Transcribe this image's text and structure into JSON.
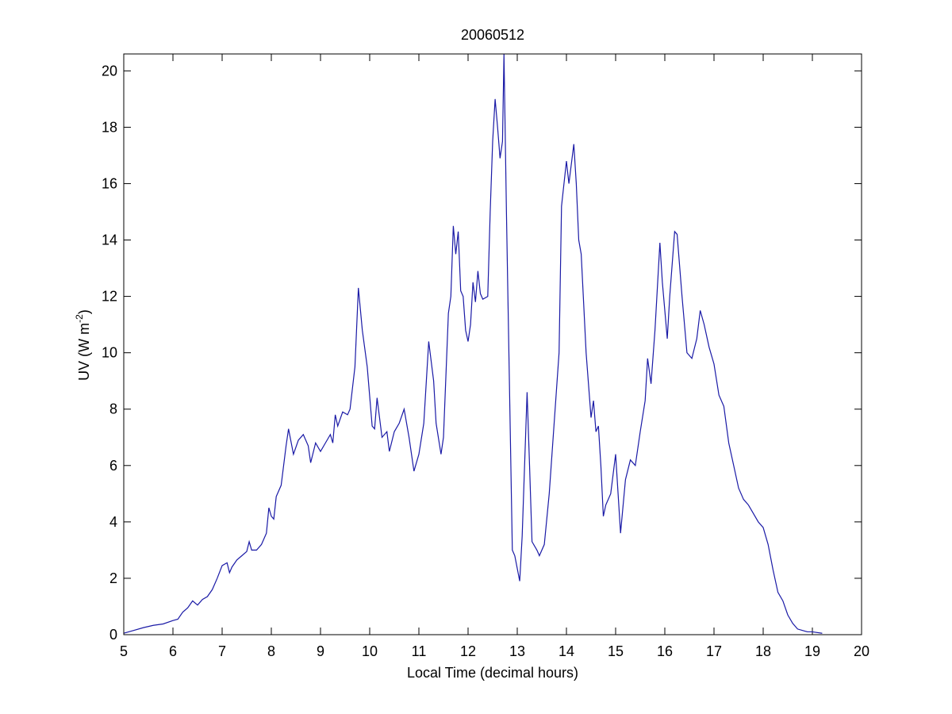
{
  "chart_data": {
    "type": "line",
    "title": "20060512",
    "xlabel": "Local Time (decimal hours)",
    "ylabel": [
      "UV (W m",
      "-2",
      ")"
    ],
    "x": [
      5.0,
      5.2,
      5.4,
      5.6,
      5.8,
      6.0,
      6.1,
      6.2,
      6.3,
      6.4,
      6.5,
      6.6,
      6.7,
      6.8,
      6.9,
      7.0,
      7.1,
      7.15,
      7.2,
      7.3,
      7.4,
      7.5,
      7.55,
      7.6,
      7.7,
      7.8,
      7.9,
      7.95,
      8.0,
      8.05,
      8.1,
      8.2,
      8.3,
      8.35,
      8.45,
      8.55,
      8.65,
      8.75,
      8.8,
      8.9,
      9.0,
      9.1,
      9.2,
      9.25,
      9.3,
      9.35,
      9.45,
      9.55,
      9.6,
      9.7,
      9.77,
      9.85,
      9.95,
      10.05,
      10.1,
      10.15,
      10.25,
      10.35,
      10.4,
      10.5,
      10.6,
      10.7,
      10.8,
      10.9,
      11.0,
      11.1,
      11.2,
      11.3,
      11.35,
      11.45,
      11.5,
      11.6,
      11.65,
      11.7,
      11.75,
      11.8,
      11.85,
      11.9,
      11.95,
      12.0,
      12.05,
      12.1,
      12.15,
      12.2,
      12.25,
      12.3,
      12.4,
      12.45,
      12.5,
      12.55,
      12.6,
      12.65,
      12.7,
      12.73,
      12.78,
      12.85,
      12.9,
      12.95,
      13.05,
      13.1,
      13.2,
      13.25,
      13.3,
      13.4,
      13.45,
      13.55,
      13.65,
      13.75,
      13.85,
      13.9,
      14.0,
      14.05,
      14.15,
      14.2,
      14.25,
      14.3,
      14.4,
      14.5,
      14.55,
      14.6,
      14.65,
      14.7,
      14.75,
      14.8,
      14.9,
      15.0,
      15.05,
      15.1,
      15.2,
      15.3,
      15.4,
      15.5,
      15.6,
      15.65,
      15.72,
      15.8,
      15.9,
      15.95,
      16.05,
      16.1,
      16.2,
      16.25,
      16.35,
      16.45,
      16.55,
      16.65,
      16.72,
      16.8,
      16.9,
      17.0,
      17.1,
      17.2,
      17.3,
      17.4,
      17.5,
      17.6,
      17.7,
      17.8,
      17.9,
      18.0,
      18.1,
      18.2,
      18.3,
      18.4,
      18.5,
      18.6,
      18.7,
      18.8,
      18.9,
      19.0,
      19.2
    ],
    "values": [
      0.05,
      0.15,
      0.25,
      0.33,
      0.38,
      0.5,
      0.55,
      0.8,
      0.95,
      1.2,
      1.05,
      1.25,
      1.35,
      1.6,
      2.0,
      2.45,
      2.55,
      2.2,
      2.4,
      2.65,
      2.8,
      2.95,
      3.3,
      3.0,
      3.0,
      3.2,
      3.6,
      4.5,
      4.2,
      4.1,
      4.9,
      5.3,
      6.7,
      7.3,
      6.4,
      6.9,
      7.1,
      6.7,
      6.1,
      6.8,
      6.5,
      6.8,
      7.1,
      6.8,
      7.8,
      7.4,
      7.9,
      7.8,
      8.0,
      9.5,
      12.3,
      10.8,
      9.5,
      7.4,
      7.3,
      8.4,
      7.0,
      7.2,
      6.5,
      7.2,
      7.5,
      8.0,
      7.0,
      5.8,
      6.4,
      7.5,
      10.4,
      9.0,
      7.5,
      6.4,
      7.0,
      11.4,
      12.0,
      14.5,
      13.5,
      14.3,
      12.2,
      12.0,
      10.8,
      10.4,
      11.0,
      12.5,
      11.8,
      12.9,
      12.1,
      11.9,
      12.0,
      15.0,
      17.5,
      19.0,
      18.0,
      16.9,
      17.5,
      20.6,
      15.0,
      8.0,
      3.0,
      2.8,
      1.9,
      3.5,
      8.6,
      6.0,
      3.3,
      3.0,
      2.8,
      3.2,
      5.0,
      7.5,
      10.0,
      15.2,
      16.8,
      16.0,
      17.4,
      16.0,
      14.0,
      13.5,
      10.0,
      7.7,
      8.3,
      7.2,
      7.4,
      6.0,
      4.2,
      4.6,
      5.0,
      6.4,
      5.0,
      3.6,
      5.5,
      6.2,
      6.0,
      7.2,
      8.3,
      9.8,
      8.9,
      10.8,
      13.9,
      12.5,
      10.5,
      12.0,
      14.3,
      14.2,
      12.0,
      10.0,
      9.8,
      10.5,
      11.5,
      11.0,
      10.2,
      9.6,
      8.5,
      8.1,
      6.8,
      6.0,
      5.2,
      4.8,
      4.6,
      4.3,
      4.0,
      3.8,
      3.2,
      2.3,
      1.5,
      1.2,
      0.7,
      0.4,
      0.2,
      0.15,
      0.1,
      0.1,
      0.05
    ],
    "color": "#1a1aa6",
    "xlim": [
      5,
      20
    ],
    "xticks": [
      5,
      6,
      7,
      8,
      9,
      10,
      11,
      12,
      13,
      14,
      15,
      16,
      17,
      18,
      19,
      20
    ],
    "ylim": [
      0,
      20.6
    ],
    "yticks": [
      0,
      2,
      4,
      6,
      8,
      10,
      12,
      14,
      16,
      18,
      20
    ]
  }
}
